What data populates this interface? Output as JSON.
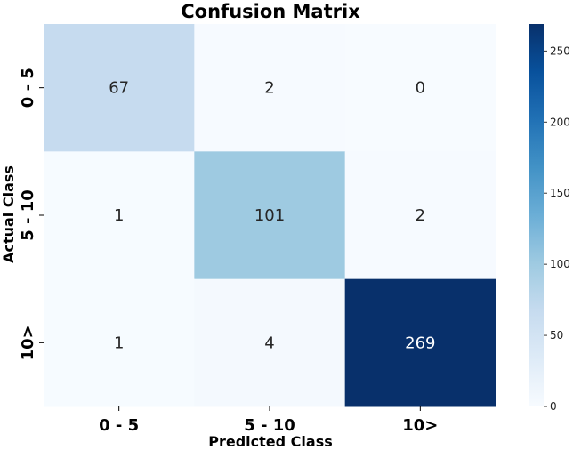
{
  "chart_data": {
    "type": "heatmap",
    "title": "Confusion Matrix",
    "xlabel": "Predicted Class",
    "ylabel": "Actual Class",
    "x_categories": [
      "0 - 5",
      "5 - 10",
      "10>"
    ],
    "y_categories": [
      "0 - 5",
      "5 - 10",
      "10>"
    ],
    "values": [
      [
        67,
        2,
        0
      ],
      [
        1,
        101,
        2
      ],
      [
        1,
        4,
        269
      ]
    ],
    "colorscale": "Blues",
    "color_range": [
      0,
      269
    ],
    "colorbar_ticks": [
      0,
      50,
      100,
      150,
      200,
      250
    ],
    "grid": false,
    "legend": "colorbar-right"
  }
}
